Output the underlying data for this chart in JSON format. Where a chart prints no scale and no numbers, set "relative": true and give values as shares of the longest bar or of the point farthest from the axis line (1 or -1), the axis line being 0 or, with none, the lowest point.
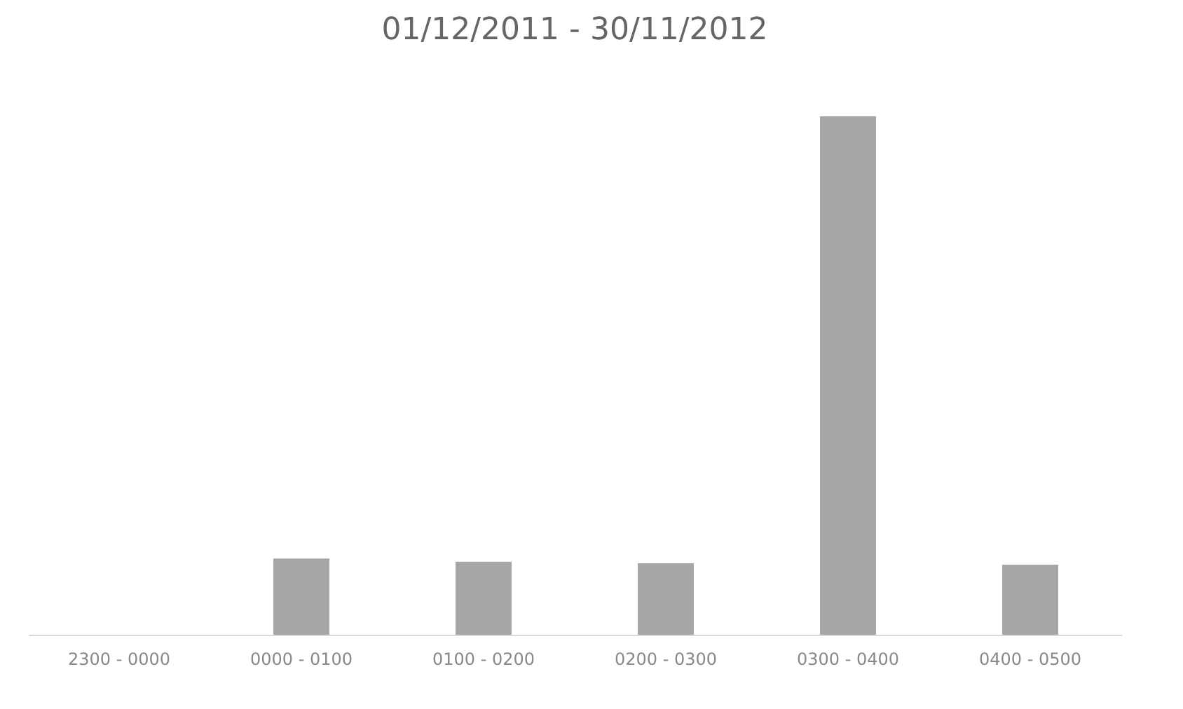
{
  "chart_data": {
    "type": "bar",
    "title": "01/12/2011 - 30/11/2012",
    "categories": [
      "2300 - 0000",
      "0000 - 0100",
      "0100 - 0200",
      "0200 - 0300",
      "0300 - 0400",
      "0400 - 0500"
    ],
    "values": [
      0,
      0.147,
      0.141,
      0.138,
      1,
      0.135
    ],
    "color": "#a6a6a6",
    "relative": true
  }
}
